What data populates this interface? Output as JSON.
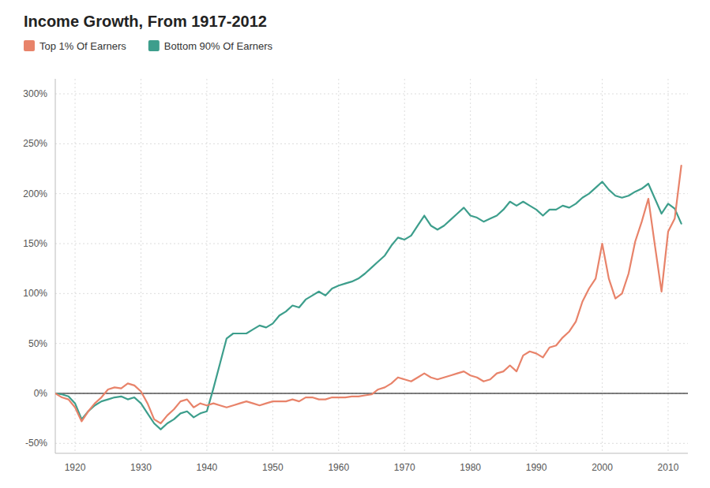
{
  "chart_data": {
    "type": "line",
    "title": "Income Growth, From 1917-2012",
    "x": [
      1917,
      1918,
      1919,
      1920,
      1921,
      1922,
      1923,
      1924,
      1925,
      1926,
      1927,
      1928,
      1929,
      1930,
      1931,
      1932,
      1933,
      1934,
      1935,
      1936,
      1937,
      1938,
      1939,
      1940,
      1941,
      1942,
      1943,
      1944,
      1945,
      1946,
      1947,
      1948,
      1949,
      1950,
      1951,
      1952,
      1953,
      1954,
      1955,
      1956,
      1957,
      1958,
      1959,
      1960,
      1961,
      1962,
      1963,
      1964,
      1965,
      1966,
      1967,
      1968,
      1969,
      1970,
      1971,
      1972,
      1973,
      1974,
      1975,
      1976,
      1977,
      1978,
      1979,
      1980,
      1981,
      1982,
      1983,
      1984,
      1985,
      1986,
      1987,
      1988,
      1989,
      1990,
      1991,
      1992,
      1993,
      1994,
      1995,
      1996,
      1997,
      1998,
      1999,
      2000,
      2001,
      2002,
      2003,
      2004,
      2005,
      2006,
      2007,
      2008,
      2009,
      2010,
      2011,
      2012
    ],
    "series": [
      {
        "name": "Top 1% Of Earners",
        "color": "#E8836A",
        "values": [
          0.0,
          -0.04,
          -0.06,
          -0.14,
          -0.28,
          -0.18,
          -0.1,
          -0.04,
          0.04,
          0.06,
          0.05,
          0.1,
          0.08,
          0.02,
          -0.1,
          -0.26,
          -0.3,
          -0.22,
          -0.16,
          -0.08,
          -0.06,
          -0.14,
          -0.1,
          -0.12,
          -0.1,
          -0.12,
          -0.14,
          -0.12,
          -0.1,
          -0.08,
          -0.1,
          -0.12,
          -0.1,
          -0.08,
          -0.08,
          -0.08,
          -0.06,
          -0.08,
          -0.04,
          -0.04,
          -0.06,
          -0.06,
          -0.04,
          -0.04,
          -0.04,
          -0.03,
          -0.03,
          -0.02,
          -0.01,
          0.04,
          0.06,
          0.1,
          0.16,
          0.14,
          0.12,
          0.16,
          0.2,
          0.16,
          0.14,
          0.16,
          0.18,
          0.2,
          0.22,
          0.18,
          0.16,
          0.12,
          0.14,
          0.2,
          0.22,
          0.28,
          0.22,
          0.38,
          0.42,
          0.4,
          0.36,
          0.46,
          0.48,
          0.56,
          0.62,
          0.72,
          0.92,
          1.05,
          1.15,
          1.5,
          1.15,
          0.95,
          1.0,
          1.2,
          1.52,
          1.72,
          1.95,
          1.48,
          1.02,
          1.62,
          1.75,
          2.28
        ]
      },
      {
        "name": "Bottom 90% Of Earners",
        "color": "#3D9E8C",
        "values": [
          0.0,
          -0.01,
          -0.03,
          -0.1,
          -0.26,
          -0.18,
          -0.12,
          -0.08,
          -0.06,
          -0.04,
          -0.03,
          -0.06,
          -0.04,
          -0.1,
          -0.2,
          -0.3,
          -0.36,
          -0.3,
          -0.26,
          -0.2,
          -0.18,
          -0.24,
          -0.2,
          -0.18,
          0.05,
          0.3,
          0.55,
          0.6,
          0.6,
          0.6,
          0.64,
          0.68,
          0.66,
          0.7,
          0.78,
          0.82,
          0.88,
          0.86,
          0.94,
          0.98,
          1.02,
          0.98,
          1.05,
          1.08,
          1.1,
          1.12,
          1.15,
          1.2,
          1.26,
          1.32,
          1.38,
          1.48,
          1.56,
          1.54,
          1.58,
          1.68,
          1.78,
          1.68,
          1.64,
          1.68,
          1.74,
          1.8,
          1.86,
          1.78,
          1.76,
          1.72,
          1.75,
          1.78,
          1.84,
          1.92,
          1.88,
          1.92,
          1.88,
          1.84,
          1.78,
          1.84,
          1.84,
          1.88,
          1.86,
          1.9,
          1.96,
          2.0,
          2.06,
          2.12,
          2.04,
          1.98,
          1.96,
          1.98,
          2.02,
          2.05,
          2.1,
          1.95,
          1.8,
          1.9,
          1.85,
          1.7
        ]
      }
    ],
    "xlim": [
      1917,
      2013
    ],
    "ylim": [
      -0.6,
      3.15
    ],
    "xticks": [
      1920,
      1930,
      1940,
      1950,
      1960,
      1970,
      1980,
      1990,
      2000,
      2010
    ],
    "yticks": [
      {
        "value": -0.5,
        "label": "-50%"
      },
      {
        "value": 0.0,
        "label": "0%"
      },
      {
        "value": 0.5,
        "label": "50%"
      },
      {
        "value": 1.0,
        "label": "100%"
      },
      {
        "value": 1.5,
        "label": "150%"
      },
      {
        "value": 2.0,
        "label": "200%"
      },
      {
        "value": 2.5,
        "label": "250%"
      },
      {
        "value": 3.0,
        "label": "300%"
      }
    ],
    "grid": true,
    "legend": "top-left"
  }
}
